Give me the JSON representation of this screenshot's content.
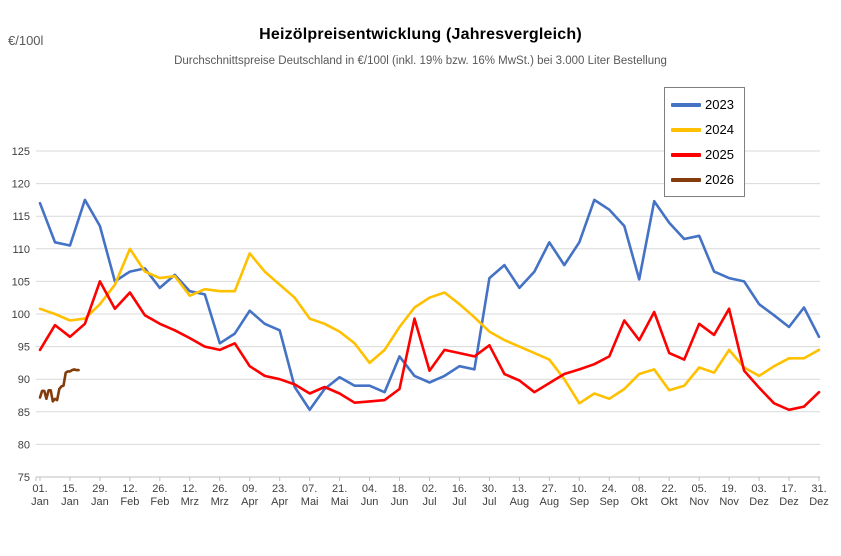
{
  "header": {
    "y_axis_unit": "€/100l",
    "title": "Heizölpreisentwicklung (Jahresvergleich)",
    "subtitle": "Durchschnittspreise Deutschland in €/100l (inkl. 19% bzw. 16% MwSt.) bei 3.000 Liter Bestellung"
  },
  "chart_data": {
    "type": "line",
    "title": "Heizölpreisentwicklung (Jahresvergleich)",
    "subtitle": "Durchschnittspreise Deutschland in €/100l (inkl. 19% bzw. 16% MwSt.) bei 3.000 Liter Bestellung",
    "ylabel": "€/100l",
    "ylim": [
      75,
      125
    ],
    "y_tick_step": 5,
    "grid": true,
    "legend_position": "top-right",
    "x_unit": "day_of_year",
    "x_domain_days": 364,
    "x_ticks": [
      {
        "day": 0,
        "top": "01.",
        "bottom": "Jan"
      },
      {
        "day": 14,
        "top": "15.",
        "bottom": "Jan"
      },
      {
        "day": 28,
        "top": "29.",
        "bottom": "Jan"
      },
      {
        "day": 42,
        "top": "12.",
        "bottom": "Feb"
      },
      {
        "day": 56,
        "top": "26.",
        "bottom": "Feb"
      },
      {
        "day": 70,
        "top": "12.",
        "bottom": "Mrz"
      },
      {
        "day": 84,
        "top": "26.",
        "bottom": "Mrz"
      },
      {
        "day": 98,
        "top": "09.",
        "bottom": "Apr"
      },
      {
        "day": 112,
        "top": "23.",
        "bottom": "Apr"
      },
      {
        "day": 126,
        "top": "07.",
        "bottom": "Mai"
      },
      {
        "day": 140,
        "top": "21.",
        "bottom": "Mai"
      },
      {
        "day": 154,
        "top": "04.",
        "bottom": "Jun"
      },
      {
        "day": 168,
        "top": "18.",
        "bottom": "Jun"
      },
      {
        "day": 182,
        "top": "02.",
        "bottom": "Jul"
      },
      {
        "day": 196,
        "top": "16.",
        "bottom": "Jul"
      },
      {
        "day": 210,
        "top": "30.",
        "bottom": "Jul"
      },
      {
        "day": 224,
        "top": "13.",
        "bottom": "Aug"
      },
      {
        "day": 238,
        "top": "27.",
        "bottom": "Aug"
      },
      {
        "day": 252,
        "top": "10.",
        "bottom": "Sep"
      },
      {
        "day": 266,
        "top": "24.",
        "bottom": "Sep"
      },
      {
        "day": 280,
        "top": "08.",
        "bottom": "Okt"
      },
      {
        "day": 294,
        "top": "22.",
        "bottom": "Okt"
      },
      {
        "day": 308,
        "top": "05.",
        "bottom": "Nov"
      },
      {
        "day": 322,
        "top": "19.",
        "bottom": "Nov"
      },
      {
        "day": 336,
        "top": "03.",
        "bottom": "Dez"
      },
      {
        "day": 350,
        "top": "17.",
        "bottom": "Dez"
      },
      {
        "day": 364,
        "top": "31.",
        "bottom": "Dez"
      }
    ],
    "series": [
      {
        "name": "2023",
        "color": "#4472C4",
        "start_day": 0,
        "step_days": 7,
        "values": [
          117,
          111,
          110.5,
          117.5,
          113.5,
          105,
          106.5,
          107,
          104,
          106,
          103.5,
          103,
          95.5,
          97,
          100.5,
          98.5,
          97.5,
          88.8,
          85.3,
          88.5,
          90.3,
          89,
          89,
          88,
          93.5,
          90.5,
          89.5,
          90.5,
          92,
          91.5,
          105.5,
          107.5,
          104,
          106.5,
          111,
          107.5,
          111,
          117.5,
          116,
          113.5,
          105.3,
          117.3,
          114,
          111.5,
          112,
          106.5,
          105.5,
          105,
          101.5,
          99.8,
          98,
          101,
          96.5
        ]
      },
      {
        "name": "2024",
        "color": "#FFC000",
        "start_day": 0,
        "step_days": 7,
        "values": [
          100.8,
          100,
          99,
          99.3,
          101.5,
          104.5,
          110,
          106.5,
          105.5,
          105.8,
          102.8,
          103.8,
          103.5,
          103.5,
          109.3,
          106.5,
          104.5,
          102.5,
          99.3,
          98.5,
          97.3,
          95.5,
          92.5,
          94.5,
          98,
          101,
          102.5,
          103.3,
          101.5,
          99.5,
          97.3,
          96,
          95,
          94,
          93,
          90,
          86.3,
          87.8,
          87,
          88.5,
          90.8,
          91.5,
          88.3,
          89,
          91.8,
          91,
          94.5,
          91.8,
          90.5,
          92,
          93.2,
          93.2,
          94.5
        ]
      },
      {
        "name": "2025",
        "color": "#FF0000",
        "start_day": 0,
        "step_days": 7,
        "values": [
          94.5,
          98.3,
          96.5,
          98.5,
          105,
          100.8,
          103.3,
          99.8,
          98.5,
          97.5,
          96.3,
          95,
          94.5,
          95.5,
          92,
          90.5,
          90,
          89.2,
          87.8,
          88.8,
          87.8,
          86.4,
          86.6,
          86.8,
          88.5,
          99.3,
          91.3,
          94.5,
          94,
          93.5,
          95.2,
          90.8,
          89.8,
          88,
          89.4,
          90.8,
          91.5,
          92.3,
          93.5,
          99,
          96,
          100.3,
          94,
          93,
          98.5,
          96.8,
          100.8,
          91.3,
          88.7,
          86.3,
          85.3,
          85.8,
          88
        ]
      },
      {
        "name": "2026",
        "color": "#843C0C",
        "start_day": 0,
        "step_days": 1,
        "values": [
          87.2,
          88.2,
          88.2,
          87.0,
          88.3,
          88.3,
          86.6,
          87.0,
          86.8,
          88.5,
          88.9,
          89.0,
          91.0,
          91.2,
          91.2,
          91.4,
          91.5,
          91.4,
          91.4
        ]
      }
    ],
    "style": {
      "grid_color": "#D9D9D9",
      "axis_color": "#BFBFBF",
      "tick_label_color": "#404040",
      "line_width": 2.6
    }
  }
}
